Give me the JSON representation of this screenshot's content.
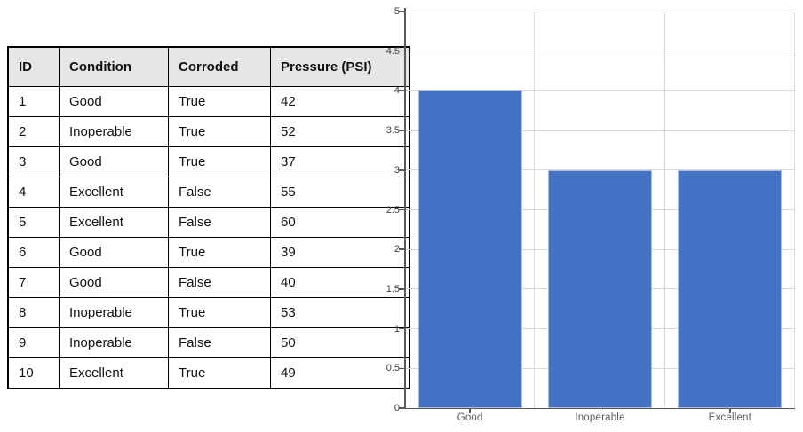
{
  "table": {
    "columns": [
      "ID",
      "Condition",
      "Corroded",
      "Pressure (PSI)"
    ],
    "rows": [
      [
        "1",
        "Good",
        "True",
        "42"
      ],
      [
        "2",
        "Inoperable",
        "True",
        "52"
      ],
      [
        "3",
        "Good",
        "True",
        "37"
      ],
      [
        "4",
        "Excellent",
        "False",
        "55"
      ],
      [
        "5",
        "Excellent",
        "False",
        "60"
      ],
      [
        "6",
        "Good",
        "True",
        "39"
      ],
      [
        "7",
        "Good",
        "False",
        "40"
      ],
      [
        "8",
        "Inoperable",
        "True",
        "53"
      ],
      [
        "9",
        "Inoperable",
        "False",
        "50"
      ],
      [
        "10",
        "Excellent",
        "True",
        "49"
      ]
    ],
    "header_bg": "#e7e6e6",
    "border_color": "#000000"
  },
  "chart_data": {
    "type": "bar",
    "categories": [
      "Good",
      "Inoperable",
      "Excellent"
    ],
    "values": [
      4,
      3,
      3
    ],
    "title": "",
    "xlabel": "",
    "ylabel": "",
    "ylim": [
      0,
      5
    ],
    "ytick_step": 0.5,
    "ytick_labels": [
      "0",
      "0.5",
      "1",
      "1.5",
      "2",
      "2.5",
      "3",
      "3.5",
      "4",
      "4.5",
      "5"
    ],
    "grid": true,
    "legend": "none",
    "bar_color": "#4472c4",
    "bar_edge_color": "#a8c0e4",
    "gridline_color": "#d9d9d9",
    "axis_color": "#595959",
    "tick_label_color": "#404040",
    "bar_width_fraction": 0.8
  }
}
